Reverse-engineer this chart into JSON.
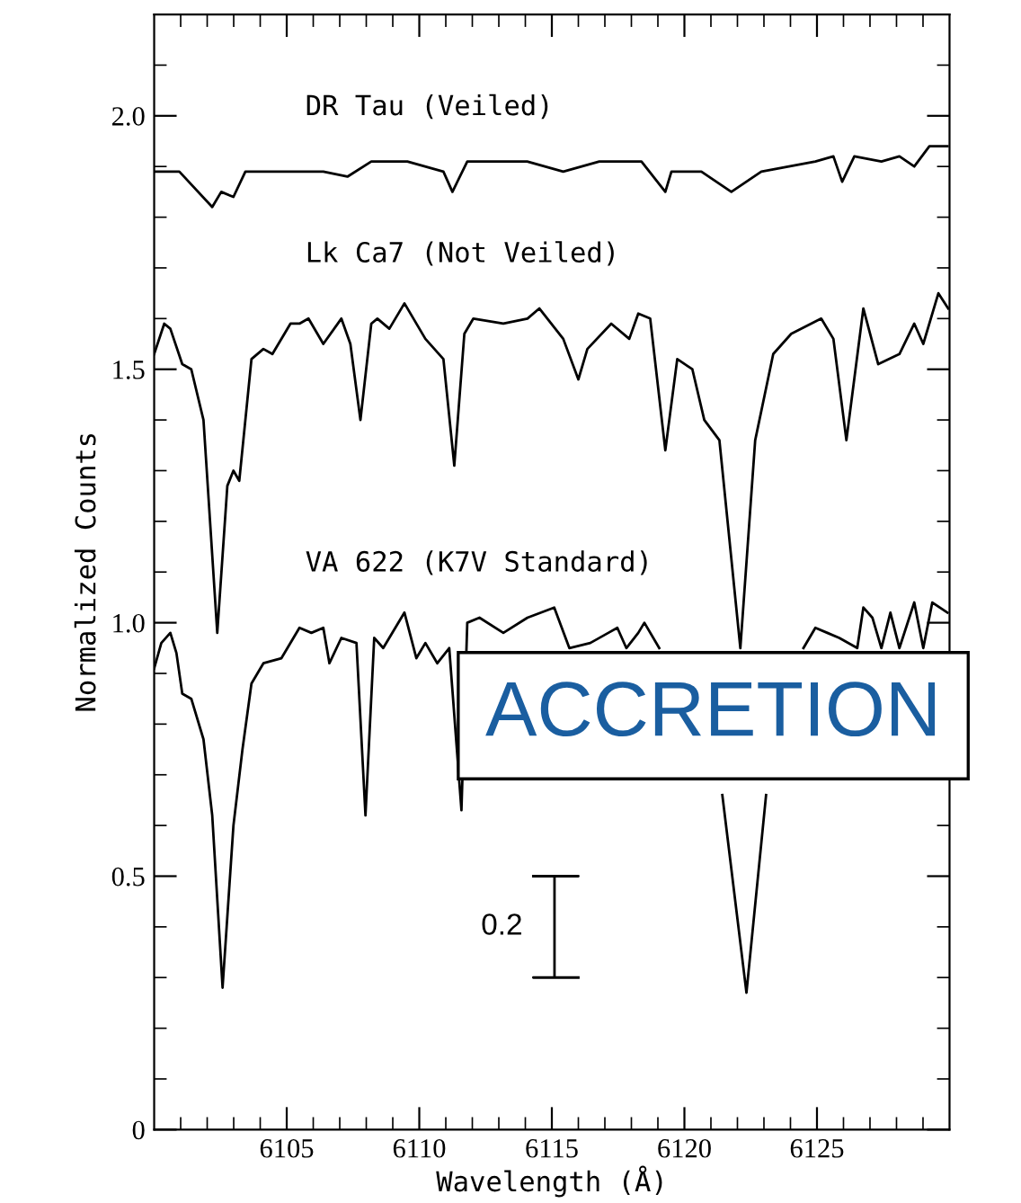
{
  "chart_data": {
    "type": "line",
    "xlabel": "Wavelength (Å)",
    "ylabel": "Normalized Counts",
    "xlim": [
      6100,
      6130
    ],
    "ylim": [
      0,
      2.2
    ],
    "xticks": [
      {
        "value": 6101,
        "label": null
      },
      {
        "value": 6102,
        "label": null
      },
      {
        "value": 6103,
        "label": null
      },
      {
        "value": 6104,
        "label": null
      },
      6105,
      {
        "value": 6106,
        "label": null
      },
      {
        "value": 6107,
        "label": null
      },
      {
        "value": 6108,
        "label": null
      },
      {
        "value": 6109,
        "label": null
      },
      6110,
      {
        "value": 6111,
        "label": null
      },
      {
        "value": 6112,
        "label": null
      },
      {
        "value": 6113,
        "label": null
      },
      {
        "value": 6114,
        "label": null
      },
      6115,
      {
        "value": 6116,
        "label": null
      },
      {
        "value": 6117,
        "label": null
      },
      {
        "value": 6118,
        "label": null
      },
      {
        "value": 6119,
        "label": null
      },
      6120,
      {
        "value": 6121,
        "label": null
      },
      {
        "value": 6122,
        "label": null
      },
      {
        "value": 6123,
        "label": null
      },
      {
        "value": 6124,
        "label": null
      },
      6125,
      {
        "value": 6126,
        "label": null
      },
      {
        "value": 6127,
        "label": null
      },
      {
        "value": 6128,
        "label": null
      },
      {
        "value": 6129,
        "label": null
      }
    ],
    "yticks": [
      0,
      {
        "value": 0.1,
        "label": null
      },
      {
        "value": 0.2,
        "label": null
      },
      {
        "value": 0.3,
        "label": null
      },
      {
        "value": 0.4,
        "label": null
      },
      0.5,
      {
        "value": 0.6,
        "label": null
      },
      {
        "value": 0.7,
        "label": null
      },
      {
        "value": 0.8,
        "label": null
      },
      {
        "value": 0.9,
        "label": null
      },
      {
        "value": 1.0,
        "label": "1.0"
      },
      {
        "value": 1.1,
        "label": null
      },
      {
        "value": 1.2,
        "label": null
      },
      {
        "value": 1.3,
        "label": null
      },
      {
        "value": 1.4,
        "label": null
      },
      1.5,
      {
        "value": 1.6,
        "label": null
      },
      {
        "value": 1.7,
        "label": null
      },
      {
        "value": 1.8,
        "label": null
      },
      {
        "value": 1.9,
        "label": null
      },
      {
        "value": 2.0,
        "label": "2.0"
      },
      {
        "value": 2.1,
        "label": null
      }
    ],
    "grid": false,
    "legend": false,
    "marker": "none",
    "line_style": "solid",
    "series": [
      {
        "name": "DR Tau (Veiled)",
        "color": "#000000",
        "x": [
          6100.0,
          6100.95,
          6102.19,
          6102.53,
          6102.99,
          6103.44,
          6104.57,
          6106.38,
          6107.29,
          6108.19,
          6109.55,
          6110.91,
          6111.25,
          6111.81,
          6114.07,
          6115.43,
          6116.79,
          6118.38,
          6119.28,
          6119.51,
          6120.64,
          6121.77,
          6122.9,
          6124.94,
          6125.62,
          6125.95,
          6126.41,
          6127.43,
          6128.11,
          6128.67,
          6129.24,
          6129.92
        ],
        "values": [
          1.89,
          1.89,
          1.82,
          1.85,
          1.84,
          1.89,
          1.89,
          1.89,
          1.88,
          1.91,
          1.91,
          1.89,
          1.85,
          1.91,
          1.91,
          1.89,
          1.91,
          1.91,
          1.85,
          1.89,
          1.89,
          1.85,
          1.89,
          1.91,
          1.92,
          1.87,
          1.92,
          1.91,
          1.92,
          1.9,
          1.94,
          1.94
        ]
      },
      {
        "name": "Lk Ca7 (Not Veiled)",
        "color": "#000000",
        "x": [
          6100.0,
          6100.38,
          6100.61,
          6101.06,
          6101.4,
          6101.86,
          6102.38,
          6102.76,
          6102.99,
          6103.21,
          6103.67,
          6104.12,
          6104.46,
          6105.14,
          6105.48,
          6105.82,
          6106.38,
          6107.06,
          6107.4,
          6107.78,
          6108.19,
          6108.42,
          6108.87,
          6109.44,
          6110.23,
          6110.91,
          6111.32,
          6111.7,
          6112.04,
          6113.17,
          6114.08,
          6114.53,
          6115.43,
          6116.0,
          6116.34,
          6117.24,
          6117.92,
          6118.26,
          6118.71,
          6119.28,
          6119.73,
          6120.3,
          6120.75,
          6121.32,
          6122.11,
          6122.67,
          6123.35,
          6124.03,
          6125.16,
          6125.62,
          6126.11,
          6126.75,
          6127.31,
          6128.11,
          6128.67,
          6129.01,
          6129.58,
          6129.95
        ],
        "values": [
          1.53,
          1.59,
          1.58,
          1.51,
          1.5,
          1.4,
          0.98,
          1.27,
          1.3,
          1.28,
          1.52,
          1.54,
          1.53,
          1.59,
          1.59,
          1.6,
          1.55,
          1.6,
          1.55,
          1.4,
          1.59,
          1.6,
          1.58,
          1.63,
          1.56,
          1.52,
          1.31,
          1.57,
          1.6,
          1.59,
          1.6,
          1.62,
          1.56,
          1.48,
          1.54,
          1.59,
          1.56,
          1.61,
          1.6,
          1.34,
          1.52,
          1.5,
          1.4,
          1.36,
          0.95,
          1.36,
          1.53,
          1.57,
          1.6,
          1.56,
          1.36,
          1.62,
          1.51,
          1.53,
          1.59,
          1.55,
          1.65,
          1.62
        ]
      },
      {
        "name": "VA 622 (K7V Standard)",
        "color": "#000000",
        "x": [
          6100.0,
          6100.27,
          6100.61,
          6100.84,
          6101.06,
          6101.4,
          6101.86,
          6102.19,
          6102.58,
          6102.99,
          6103.33,
          6103.67,
          6104.12,
          6104.8,
          6105.48,
          6105.93,
          6106.38,
          6106.61,
          6107.06,
          6107.63,
          6107.97,
          6108.3,
          6108.64,
          6109.44,
          6109.89,
          6110.23,
          6110.68,
          6111.13,
          6111.59,
          6111.81,
          6112.27,
          6113.17,
          6114.08,
          6115.09,
          6115.66,
          6116.45,
          6117.13,
          6117.47,
          6117.81,
          6118.26,
          6118.49,
          6119.05,
          6120.0,
          6121.43,
          6122.34,
          6123.08,
          6124.0,
          6124.49,
          6124.94,
          6125.39,
          6125.84,
          6126.52,
          6126.75,
          6127.09,
          6127.43,
          6127.77,
          6128.11,
          6128.67,
          6129.01,
          6129.35,
          6129.92
        ],
        "values": [
          0.91,
          0.96,
          0.98,
          0.94,
          0.86,
          0.85,
          0.77,
          0.62,
          0.28,
          0.6,
          0.75,
          0.88,
          0.92,
          0.93,
          0.99,
          0.98,
          0.99,
          0.92,
          0.97,
          0.96,
          0.62,
          0.97,
          0.95,
          1.02,
          0.93,
          0.96,
          0.92,
          0.95,
          0.63,
          1.0,
          1.01,
          0.98,
          1.01,
          1.03,
          0.95,
          0.96,
          0.98,
          0.99,
          0.95,
          0.98,
          1.0,
          0.95,
          null,
          0.66,
          0.27,
          0.66,
          null,
          0.95,
          0.99,
          0.98,
          0.97,
          0.95,
          1.03,
          1.01,
          0.95,
          1.02,
          0.95,
          1.04,
          0.95,
          1.04,
          1.02
        ]
      },
      {
        "type": "line",
        "color": "#000000",
        "x": [
          6114.3,
          6116.0,
          6115.1,
          6115.1,
          6114.3,
          6116.0
        ],
        "values": [
          0.5,
          0.5,
          0.5,
          0.3,
          0.3,
          0.3
        ]
      }
    ],
    "annotations": [
      "0.2",
      "ACCRETION"
    ]
  }
}
